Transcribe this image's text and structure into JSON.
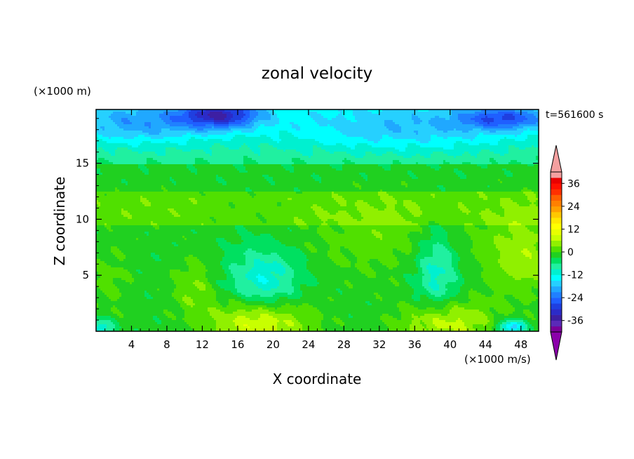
{
  "chart_data": {
    "type": "heatmap",
    "title": "zonal velocity",
    "xlabel": "X coordinate",
    "ylabel": "Z coordinate",
    "x_unit_label": "(×1000 m/s)",
    "y_unit_label": "(×1000 m)",
    "time_label": "t=561600 s",
    "x_range": [
      0,
      50
    ],
    "y_range": [
      0,
      19.8
    ],
    "x_ticks": [
      4,
      8,
      12,
      16,
      20,
      24,
      28,
      32,
      36,
      40,
      44,
      48
    ],
    "y_ticks": [
      5,
      10,
      15
    ],
    "colorbar": {
      "ticks": [
        36,
        24,
        12,
        0,
        -12,
        -24,
        -36
      ],
      "levels": [
        -42,
        -39,
        -36,
        -33,
        -30,
        -27,
        -24,
        -21,
        -18,
        -15,
        -12,
        -9,
        -6,
        -3,
        0,
        3,
        6,
        9,
        12,
        15,
        18,
        21,
        24,
        27,
        30,
        33,
        36,
        39,
        42
      ],
      "colors": [
        "#7a0099",
        "#5a2ab8",
        "#3d1fa3",
        "#2b2bc8",
        "#1f3fe0",
        "#1f5fff",
        "#2080ff",
        "#20a8ff",
        "#26d0ff",
        "#00ffff",
        "#00f0d0",
        "#20f0a0",
        "#00e060",
        "#20d020",
        "#50e000",
        "#90f000",
        "#c8ff00",
        "#e8ff00",
        "#ffff00",
        "#ffe800",
        "#ffc800",
        "#ffa000",
        "#ff8000",
        "#ff6000",
        "#ff3000",
        "#ff1000",
        "#e80000",
        "#f4a0a0"
      ],
      "extend_low": "#8b00aa",
      "extend_high": "#f4a0a0"
    },
    "features": [
      {
        "x": 18.5,
        "z": 0.8,
        "rx": 5.5,
        "rz": 2.2,
        "v": 12
      },
      {
        "x": 39.5,
        "z": 0.8,
        "rx": 5.0,
        "rz": 2.0,
        "v": 10
      },
      {
        "x": 48.0,
        "z": 7.0,
        "rx": 4.0,
        "rz": 4.0,
        "v": 7
      },
      {
        "x": 33.0,
        "z": 8.5,
        "rx": 10.0,
        "rz": 3.5,
        "v": 4
      },
      {
        "x": 6.0,
        "z": 11.0,
        "rx": 8.0,
        "rz": 2.5,
        "v": 1
      },
      {
        "x": 11.0,
        "z": 4.0,
        "rx": 2.5,
        "rz": 2.5,
        "v": 5
      },
      {
        "x": 1.5,
        "z": 4.5,
        "rx": 2.5,
        "rz": 3.0,
        "v": 3
      },
      {
        "x": 19.0,
        "z": 4.5,
        "rx": 4.0,
        "rz": 3.0,
        "v": -10
      },
      {
        "x": 38.5,
        "z": 5.5,
        "rx": 2.5,
        "rz": 4.0,
        "v": -9
      },
      {
        "x": 14.0,
        "z": 19.3,
        "rx": 4.5,
        "rz": 1.2,
        "v": -20
      },
      {
        "x": 35.0,
        "z": 18.0,
        "rx": 14.0,
        "rz": 2.0,
        "v": -8
      },
      {
        "x": 5.0,
        "z": 18.5,
        "rx": 8.0,
        "rz": 1.8,
        "v": -10
      },
      {
        "x": 46.0,
        "z": 19.0,
        "rx": 5.0,
        "rz": 1.0,
        "v": -14
      },
      {
        "x": 0.5,
        "z": 0.3,
        "rx": 1.5,
        "rz": 0.8,
        "v": -10
      },
      {
        "x": 47.0,
        "z": 0.4,
        "rx": 1.5,
        "rz": 0.6,
        "v": -16
      }
    ]
  }
}
